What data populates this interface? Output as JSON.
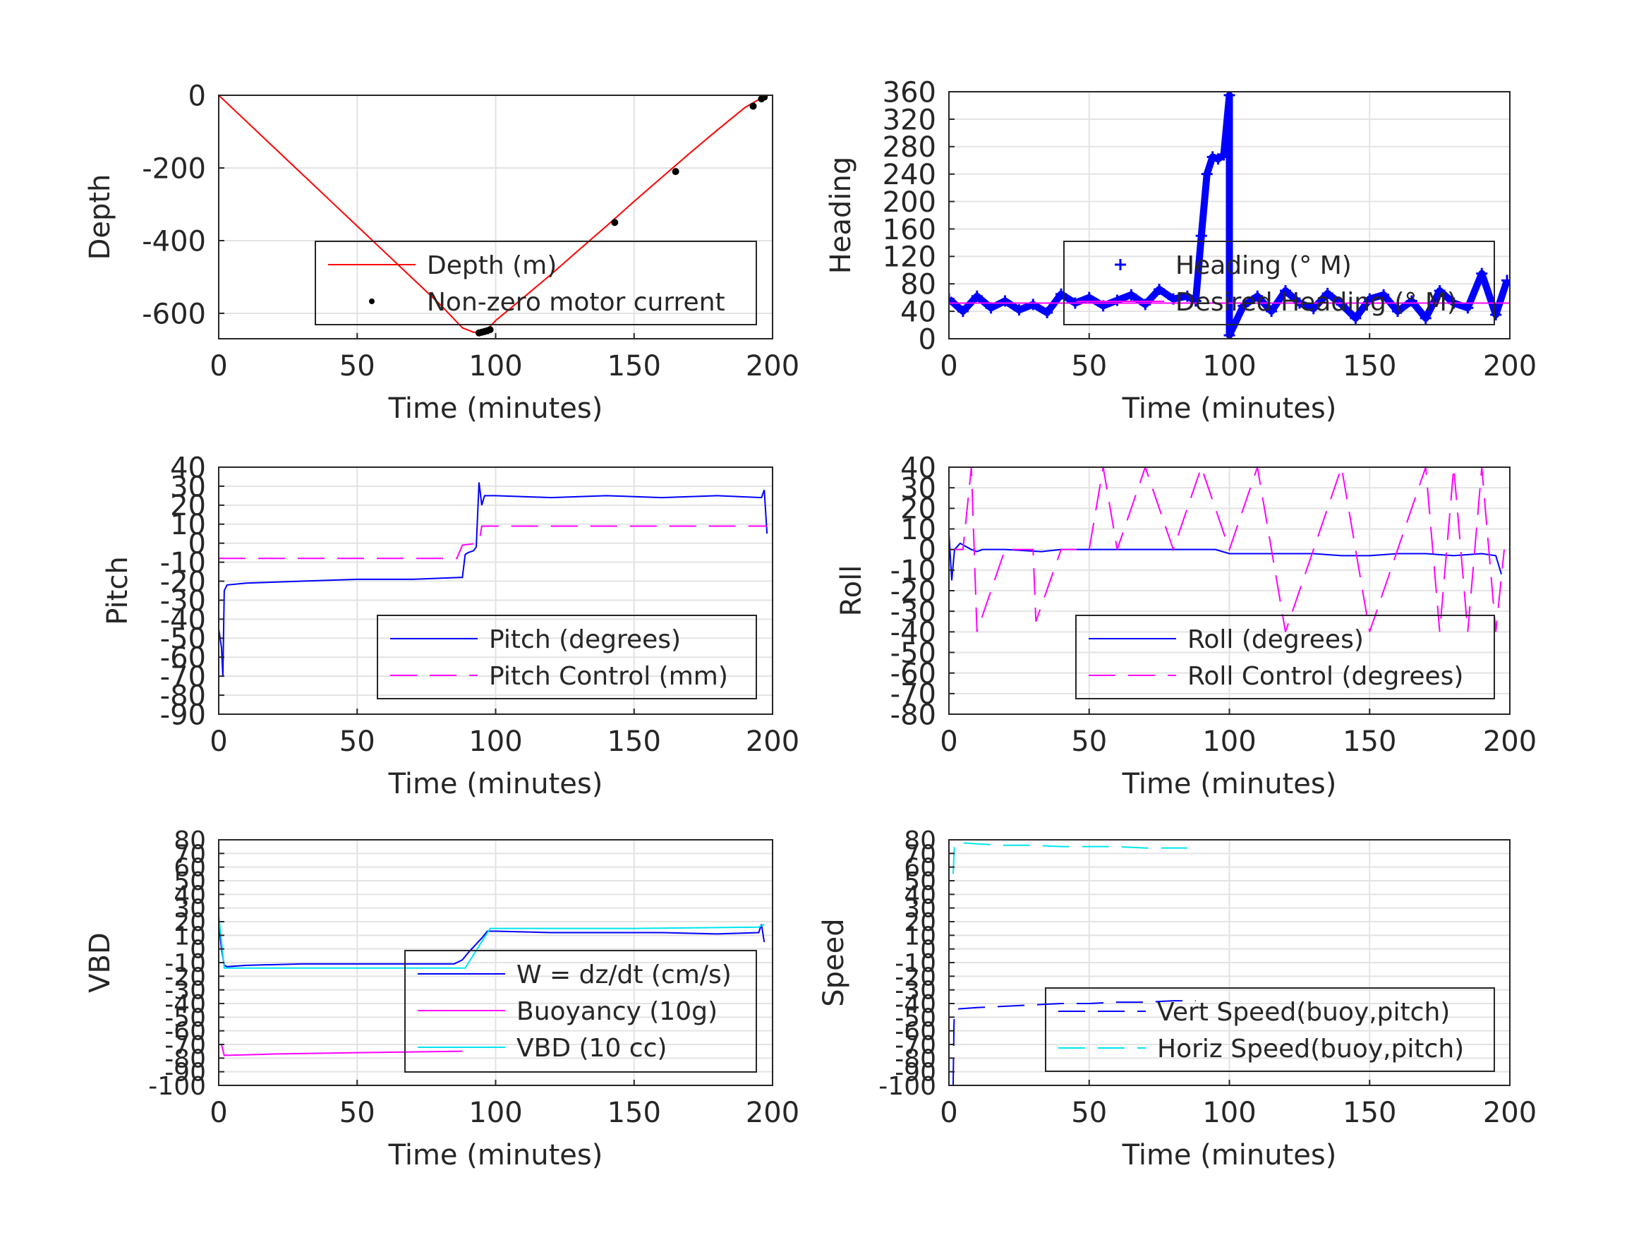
{
  "chart_data": [
    {
      "id": "depth",
      "type": "line",
      "xlabel": "Time (minutes)",
      "ylabel": "Depth",
      "xlim": [
        0,
        200
      ],
      "ylim": [
        -670,
        0
      ],
      "xticks": [
        "0",
        "50",
        "100",
        "150",
        "200"
      ],
      "yticks": [
        "0",
        "-200",
        "-400",
        "-600"
      ],
      "grid": true,
      "legend_position": "bottom-right",
      "series": [
        {
          "name": "Depth (m)",
          "style": "solid",
          "color": "#ff0000",
          "x": [
            0,
            10,
            20,
            30,
            40,
            50,
            60,
            70,
            80,
            88,
            92,
            96,
            100,
            110,
            120,
            130,
            140,
            150,
            160,
            170,
            180,
            190,
            197
          ],
          "y": [
            0,
            -72,
            -144,
            -216,
            -288,
            -360,
            -432,
            -504,
            -576,
            -640,
            -652,
            -652,
            -620,
            -557,
            -493,
            -426,
            -360,
            -292,
            -226,
            -160,
            -96,
            -34,
            -3
          ]
        },
        {
          "name": "Non-zero motor current",
          "style": "points",
          "color": "#000000",
          "x": [
            94,
            95,
            96,
            97,
            98,
            143,
            165,
            193,
            196,
            197
          ],
          "y": [
            -654,
            -652,
            -650,
            -648,
            -645,
            -350,
            -210,
            -30,
            -10,
            -5
          ]
        }
      ]
    },
    {
      "id": "heading",
      "type": "line",
      "xlabel": "Time (minutes)",
      "ylabel": "Heading",
      "xlim": [
        0,
        200
      ],
      "ylim": [
        0,
        360
      ],
      "xticks": [
        "0",
        "50",
        "100",
        "150",
        "200"
      ],
      "yticks": [
        "0",
        "40",
        "80",
        "120",
        "160",
        "200",
        "240",
        "280",
        "320",
        "360"
      ],
      "grid": true,
      "legend_position": "center-right",
      "series": [
        {
          "name": "Heading (° M)",
          "style": "plus",
          "color": "#0000ff",
          "x": [
            0,
            5,
            10,
            15,
            20,
            25,
            30,
            35,
            40,
            45,
            50,
            55,
            60,
            65,
            70,
            75,
            80,
            85,
            88,
            90,
            92,
            94,
            96,
            98,
            100,
            100,
            105,
            110,
            115,
            120,
            125,
            130,
            135,
            140,
            145,
            150,
            155,
            160,
            165,
            170,
            175,
            180,
            185,
            190,
            195,
            199
          ],
          "y": [
            58,
            40,
            62,
            45,
            55,
            42,
            50,
            38,
            65,
            52,
            60,
            48,
            56,
            64,
            50,
            72,
            58,
            62,
            55,
            150,
            240,
            265,
            262,
            268,
            355,
            5,
            48,
            62,
            40,
            70,
            52,
            44,
            66,
            50,
            30,
            58,
            64,
            40,
            55,
            30,
            70,
            52,
            45,
            95,
            35,
            85
          ]
        },
        {
          "name": "Desired Heading (° M)",
          "style": "solid",
          "color": "#ff00ff",
          "x": [
            0,
            200
          ],
          "y": [
            52,
            52
          ]
        }
      ]
    },
    {
      "id": "pitch",
      "type": "line",
      "xlabel": "Time (minutes)",
      "ylabel": "Pitch",
      "xlim": [
        0,
        200
      ],
      "ylim": [
        -90,
        40
      ],
      "xticks": [
        "0",
        "50",
        "100",
        "150",
        "200"
      ],
      "yticks": [
        "-90",
        "-80",
        "-70",
        "-60",
        "-50",
        "-40",
        "-30",
        "-20",
        "-10",
        "0",
        "10",
        "20",
        "30",
        "40"
      ],
      "grid": true,
      "legend_position": "bottom-right",
      "series": [
        {
          "name": "Pitch (degrees)",
          "style": "solid",
          "color": "#0000ff",
          "x": [
            0,
            1,
            1.5,
            2,
            3,
            10,
            30,
            50,
            70,
            88,
            89,
            90,
            92,
            93,
            94,
            95,
            96,
            100,
            120,
            140,
            160,
            180,
            196,
            197,
            198
          ],
          "y": [
            -45,
            -55,
            -70,
            -25,
            -22,
            -21,
            -20,
            -19,
            -19,
            -18,
            -6,
            -5,
            -4,
            -2,
            32,
            20,
            25,
            25,
            24,
            25,
            24,
            25,
            24,
            28,
            5
          ]
        },
        {
          "name": "Pitch Control (mm)",
          "style": "dashed",
          "color": "#ff00ff",
          "x": [
            0,
            86,
            88,
            94,
            95,
            198
          ],
          "y": [
            -8,
            -8,
            -1,
            0,
            9,
            9
          ]
        }
      ]
    },
    {
      "id": "roll",
      "type": "line",
      "xlabel": "Time (minutes)",
      "ylabel": "Roll",
      "xlim": [
        0,
        200
      ],
      "ylim": [
        -80,
        40
      ],
      "xticks": [
        "0",
        "50",
        "100",
        "150",
        "200"
      ],
      "yticks": [
        "-80",
        "-70",
        "-60",
        "-50",
        "-40",
        "-30",
        "-20",
        "-10",
        "0",
        "10",
        "20",
        "30",
        "40"
      ],
      "grid": true,
      "legend_position": "bottom-right",
      "series": [
        {
          "name": "Roll (degrees)",
          "style": "solid",
          "color": "#0000ff",
          "x": [
            0,
            1,
            2,
            4,
            8,
            10,
            12,
            20,
            33,
            40,
            50,
            55,
            60,
            70,
            80,
            90,
            95,
            100,
            110,
            120,
            130,
            140,
            150,
            160,
            170,
            180,
            190,
            195,
            197
          ],
          "y": [
            8,
            -15,
            0,
            3,
            0,
            -1,
            0,
            0,
            -1,
            0,
            0,
            0,
            0,
            0,
            0,
            0,
            0,
            -2,
            -2,
            -2,
            -2,
            -3,
            -3,
            -2,
            -2,
            -3,
            -2,
            -3,
            -12
          ]
        },
        {
          "name": "Roll Control (degrees)",
          "style": "dashed",
          "color": "#ff00ff",
          "x": [
            0,
            5,
            8,
            10,
            20,
            30,
            31,
            40,
            50,
            55,
            60,
            70,
            80,
            90,
            100,
            110,
            120,
            130,
            140,
            150,
            160,
            170,
            175,
            180,
            185,
            190,
            195,
            198
          ],
          "y": [
            0,
            0,
            40,
            -40,
            0,
            0,
            -35,
            0,
            0,
            40,
            0,
            40,
            0,
            40,
            0,
            40,
            -40,
            0,
            40,
            -40,
            0,
            40,
            -40,
            40,
            -40,
            40,
            -40,
            0
          ]
        }
      ]
    },
    {
      "id": "vbd",
      "type": "line",
      "xlabel": "Time (minutes)",
      "ylabel": "VBD",
      "xlim": [
        0,
        200
      ],
      "ylim": [
        -100,
        80
      ],
      "xticks": [
        "0",
        "50",
        "100",
        "150",
        "200"
      ],
      "yticks": [
        "-100",
        "-90",
        "-80",
        "-70",
        "-60",
        "-50",
        "-40",
        "-30",
        "-20",
        "-10",
        "0",
        "10",
        "20",
        "30",
        "40",
        "50",
        "60",
        "70",
        "80"
      ],
      "grid": true,
      "legend_position": "bottom-right",
      "series": [
        {
          "name": "W = dz/dt (cm/s)",
          "style": "solid",
          "color": "#0000ff",
          "x": [
            0,
            1,
            2,
            3,
            10,
            30,
            50,
            70,
            85,
            88,
            90,
            95,
            97,
            100,
            120,
            140,
            160,
            180,
            195,
            196,
            197
          ],
          "y": [
            20,
            0,
            -12,
            -13,
            -12,
            -11,
            -11,
            -11,
            -11,
            -8,
            -3,
            8,
            13,
            13,
            12,
            12,
            12,
            11,
            12,
            18,
            5
          ]
        },
        {
          "name": "Buoyancy (10g)",
          "style": "solid",
          "color": "#ff00ff",
          "x": [
            0,
            1,
            2,
            20,
            50,
            88
          ],
          "y": [
            -70,
            -70,
            -78,
            -77,
            -76,
            -75
          ]
        },
        {
          "name": "VBD (10 cc)",
          "style": "solid",
          "color": "#00e5ee",
          "x": [
            0,
            2,
            3,
            10,
            50,
            88,
            89,
            98,
            100,
            150,
            195,
            197
          ],
          "y": [
            25,
            -14,
            -14,
            -14,
            -14,
            -14,
            -14,
            15,
            15,
            15,
            16,
            18
          ]
        }
      ]
    },
    {
      "id": "speed",
      "type": "line",
      "xlabel": "Time (minutes)",
      "ylabel": "Speed",
      "xlim": [
        0,
        200
      ],
      "ylim": [
        -100,
        80
      ],
      "xticks": [
        "0",
        "50",
        "100",
        "150",
        "200"
      ],
      "yticks": [
        "-100",
        "-90",
        "-80",
        "-70",
        "-60",
        "-50",
        "-40",
        "-30",
        "-20",
        "-10",
        "0",
        "10",
        "20",
        "30",
        "40",
        "50",
        "60",
        "70",
        "80"
      ],
      "grid": true,
      "legend_position": "bottom-right",
      "series": [
        {
          "name": "Vert Speed(buoy,pitch)",
          "style": "dashed",
          "color": "#0000ff",
          "x": [
            1.5,
            1.8,
            2,
            3,
            10,
            20,
            30,
            40,
            50,
            60,
            70,
            80,
            88
          ],
          "y": [
            -100,
            -55,
            -45,
            -44,
            -43,
            -42,
            -41,
            -40,
            -40,
            -39,
            -39,
            -38,
            -38
          ]
        },
        {
          "name": "Horiz Speed(buoy,pitch)",
          "style": "dashed",
          "color": "#00e5ee",
          "x": [
            1.5,
            2,
            3,
            10,
            20,
            30,
            40,
            50,
            60,
            70,
            80,
            85
          ],
          "y": [
            55,
            77,
            78,
            77,
            76,
            76,
            75,
            75,
            75,
            74,
            74,
            74
          ]
        }
      ]
    }
  ]
}
